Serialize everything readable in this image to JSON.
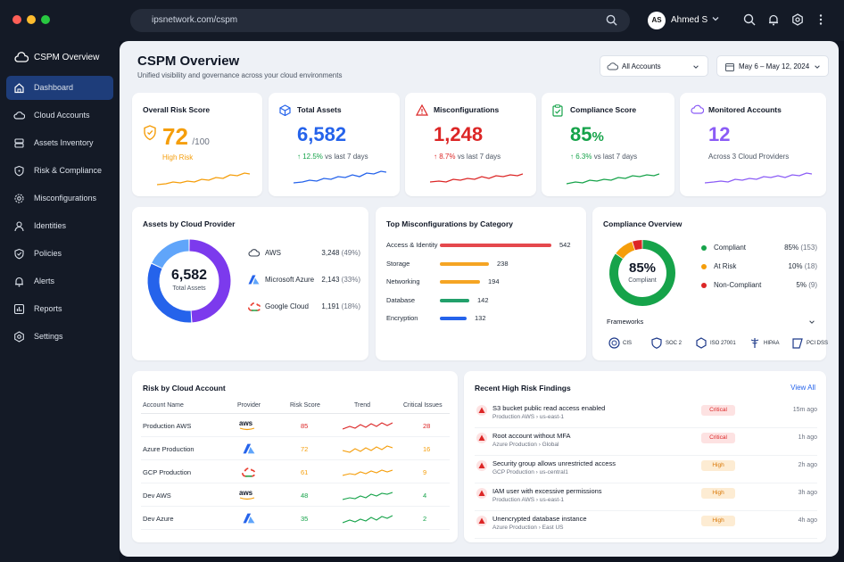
{
  "browser": {
    "url": "ipsnetwork.com/cspm",
    "user_initials": "AS",
    "user_name": "Ahmed S"
  },
  "colors": {
    "blue": "#2563eb",
    "orange": "#f59e0b",
    "red": "#dc2626",
    "green": "#16a34a",
    "purple": "#8b5cf6",
    "active_nav": "#1e3d7a"
  },
  "sidebar": {
    "brand": "CSPM Overview",
    "items": [
      {
        "label": "Dashboard",
        "icon": "home-icon",
        "active": true
      },
      {
        "label": "Cloud Accounts",
        "icon": "cloud-icon"
      },
      {
        "label": "Assets Inventory",
        "icon": "database-icon"
      },
      {
        "label": "Risk & Compliance",
        "icon": "shield-icon"
      },
      {
        "label": "Misconfigurations",
        "icon": "gear-icon"
      },
      {
        "label": "Identities",
        "icon": "user-icon"
      },
      {
        "label": "Policies",
        "icon": "policy-shield-icon"
      },
      {
        "label": "Alerts",
        "icon": "bell-icon"
      },
      {
        "label": "Reports",
        "icon": "chart-icon"
      },
      {
        "label": "Settings",
        "icon": "settings-icon"
      }
    ]
  },
  "header": {
    "title": "CSPM Overview",
    "subtitle": "Unified visibility and governance across your cloud environments",
    "accounts_select": "All Accounts",
    "date_range": "May 6 – May 12, 2024"
  },
  "kpis": {
    "risk": {
      "title": "Overall Risk Score",
      "value": "72",
      "suffix": "/100",
      "level": "High Risk"
    },
    "assets": {
      "title": "Total Assets",
      "value": "6,582",
      "change": "12.5%",
      "note": "vs last 7 days"
    },
    "misconfig": {
      "title": "Misconfigurations",
      "value": "1,248",
      "change": "8.7%",
      "note": "vs last 7 days"
    },
    "compliance": {
      "title": "Compliance Score",
      "value": "85",
      "unit": "%",
      "change": "6.3%",
      "note": "vs last 7 days"
    },
    "accounts": {
      "title": "Monitored Accounts",
      "value": "12",
      "note": "Across 3 Cloud Providers"
    }
  },
  "providers": {
    "title": "Assets by Cloud Provider",
    "total": "6,582",
    "total_label": "Total Assets",
    "items": [
      {
        "name": "AWS",
        "value": "3,248",
        "pct": "(49%)",
        "share": 0.49,
        "color": "#7c3aed"
      },
      {
        "name": "Microsoft Azure",
        "value": "2,143",
        "pct": "(33%)",
        "share": 0.33,
        "color": "#2563eb"
      },
      {
        "name": "Google Cloud",
        "value": "1,191",
        "pct": "(18%)",
        "share": 0.18,
        "color": "#60a5fa"
      }
    ]
  },
  "misconfig_categories": {
    "title": "Top Misconfigurations by Category",
    "items": [
      {
        "label": "Access & Identity",
        "value": 542,
        "color": "#e5484d"
      },
      {
        "label": "Storage",
        "value": 238,
        "color": "#f5a524"
      },
      {
        "label": "Networking",
        "value": 194,
        "color": "#f5a524"
      },
      {
        "label": "Database",
        "value": 142,
        "color": "#22a06b"
      },
      {
        "label": "Encryption",
        "value": 132,
        "color": "#2563eb"
      }
    ]
  },
  "compliance_overview": {
    "title": "Compliance Overview",
    "score": "85%",
    "score_label": "Compliant",
    "items": [
      {
        "label": "Compliant",
        "pct": "85%",
        "count": "(153)",
        "share": 0.85,
        "color": "#16a34a"
      },
      {
        "label": "At Risk",
        "pct": "10%",
        "count": "(18)",
        "share": 0.1,
        "color": "#f59e0b"
      },
      {
        "label": "Non-Compliant",
        "pct": "5%",
        "count": "(9)",
        "share": 0.05,
        "color": "#dc2626"
      }
    ],
    "frameworks_label": "Frameworks",
    "frameworks": [
      "CIS",
      "SOC 2",
      "ISO 27001",
      "HIPAA",
      "PCI DSS"
    ]
  },
  "risk_table": {
    "title": "Risk by Cloud Account",
    "headers": [
      "Account Name",
      "Provider",
      "Risk Score",
      "Trend",
      "Critical Issues"
    ],
    "rows": [
      {
        "name": "Production AWS",
        "provider": "aws",
        "score": "85",
        "critical": "28",
        "color": "#dc2626"
      },
      {
        "name": "Azure Production",
        "provider": "azure",
        "score": "72",
        "critical": "16",
        "color": "#f59e0b"
      },
      {
        "name": "GCP Production",
        "provider": "gcp",
        "score": "61",
        "critical": "9",
        "color": "#f59e0b"
      },
      {
        "name": "Dev AWS",
        "provider": "aws",
        "score": "48",
        "critical": "4",
        "color": "#16a34a"
      },
      {
        "name": "Dev Azure",
        "provider": "azure",
        "score": "35",
        "critical": "2",
        "color": "#16a34a"
      }
    ]
  },
  "findings": {
    "title": "Recent High Risk Findings",
    "view_all": "View All",
    "items": [
      {
        "title": "S3 bucket public read access enabled",
        "source": "Production AWS",
        "region": "us-east-1",
        "severity": "Critical",
        "time": "15m ago"
      },
      {
        "title": "Root account without MFA",
        "source": "Azure Production",
        "region": "Global",
        "severity": "Critical",
        "time": "1h ago"
      },
      {
        "title": "Security group allows unrestricted access",
        "source": "GCP Production",
        "region": "us-central1",
        "severity": "High",
        "time": "2h ago"
      },
      {
        "title": "IAM user with excessive permissions",
        "source": "Production AWS",
        "region": "us-east-1",
        "severity": "High",
        "time": "3h ago"
      },
      {
        "title": "Unencrypted database instance",
        "source": "Azure Production",
        "region": "East US",
        "severity": "High",
        "time": "4h ago"
      }
    ]
  }
}
